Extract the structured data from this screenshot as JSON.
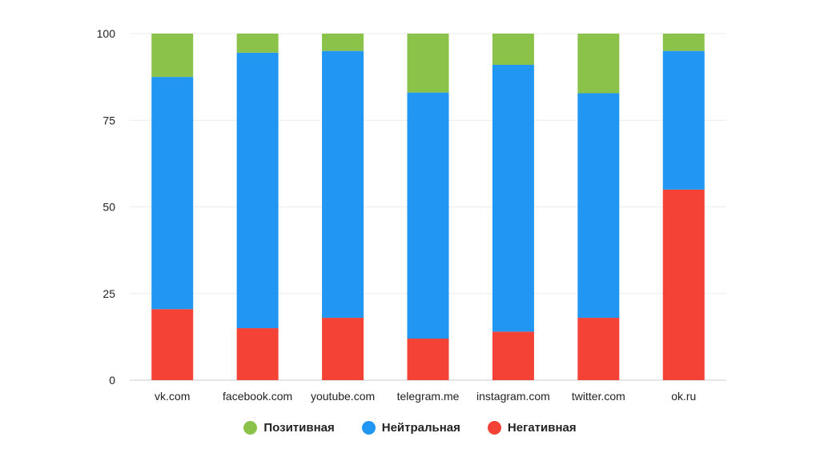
{
  "chart_data": {
    "type": "bar",
    "stacked": true,
    "categories": [
      "vk.com",
      "facebook.com",
      "youtube.com",
      "telegram.me",
      "instagram.com",
      "twitter.com",
      "ok.ru"
    ],
    "series": [
      {
        "name": "Негативная",
        "color": "#F44336",
        "values": [
          20.5,
          15,
          18,
          12,
          14,
          18,
          55
        ]
      },
      {
        "name": "Нейтральная",
        "color": "#2196F3",
        "values": [
          67,
          79.5,
          77,
          71,
          77,
          64.8,
          40
        ]
      },
      {
        "name": "Позитивная",
        "color": "#8BC34A",
        "values": [
          12.5,
          5.5,
          5,
          17,
          9,
          17.2,
          5
        ]
      }
    ],
    "yticks": [
      0,
      25,
      50,
      75,
      100
    ],
    "ylim": [
      0,
      100
    ],
    "grid": true,
    "legend_position": "bottom",
    "legend_order": [
      "Позитивная",
      "Нейтральная",
      "Негативная"
    ]
  }
}
